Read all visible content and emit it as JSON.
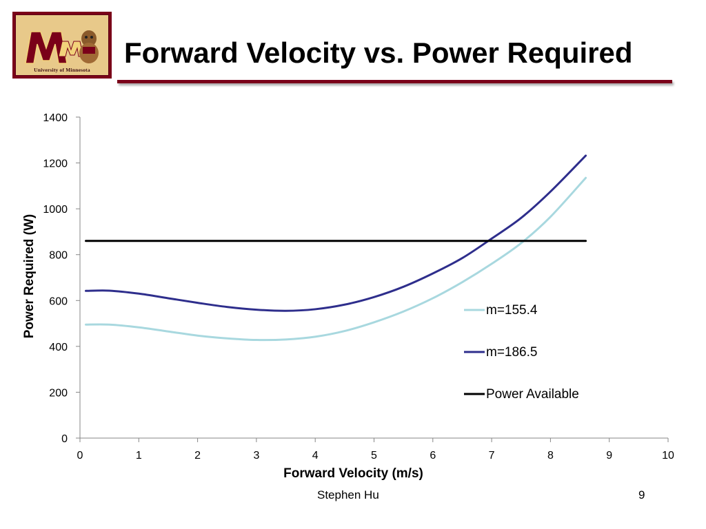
{
  "header": {
    "title": "Forward Velocity vs. Power Required",
    "logo_caption": "University of Minnesota"
  },
  "footer": {
    "author": "Stephen Hu",
    "page_number": "9"
  },
  "colors": {
    "brand_maroon": "#7a0019",
    "brand_gold": "#e8c98a",
    "series_light": "#a8d8df",
    "series_dark": "#2e2e8c",
    "series_black": "#000000"
  },
  "chart_data": {
    "type": "line",
    "title": "",
    "xlabel": "Forward Velocity (m/s)",
    "ylabel": "Power Required (W)",
    "xlim": [
      0,
      10
    ],
    "ylim": [
      0,
      1400
    ],
    "xticks": [
      0,
      1,
      2,
      3,
      4,
      5,
      6,
      7,
      8,
      9,
      10
    ],
    "yticks": [
      0,
      200,
      400,
      600,
      800,
      1000,
      1200,
      1400
    ],
    "grid": false,
    "legend_position": "right",
    "series": [
      {
        "name": "m=155.4",
        "color": "#a8d8df",
        "x": [
          0.1,
          0.5,
          1.0,
          1.5,
          2.0,
          2.5,
          3.0,
          3.5,
          4.0,
          4.5,
          5.0,
          5.5,
          6.0,
          6.5,
          7.0,
          7.5,
          8.0,
          8.6
        ],
        "y": [
          495,
          495,
          483,
          465,
          447,
          435,
          428,
          430,
          442,
          467,
          505,
          552,
          610,
          680,
          760,
          850,
          965,
          1135
        ]
      },
      {
        "name": "m=186.5",
        "color": "#2e2e8c",
        "x": [
          0.1,
          0.5,
          1.0,
          1.5,
          2.0,
          2.5,
          3.0,
          3.5,
          4.0,
          4.5,
          5.0,
          5.5,
          6.0,
          6.5,
          7.0,
          7.5,
          8.0,
          8.6
        ],
        "y": [
          642,
          643,
          630,
          610,
          590,
          572,
          560,
          555,
          562,
          582,
          615,
          660,
          718,
          785,
          870,
          960,
          1075,
          1232
        ]
      },
      {
        "name": "Power Available",
        "color": "#000000",
        "x": [
          0.1,
          8.6
        ],
        "y": [
          860,
          860
        ]
      }
    ]
  }
}
